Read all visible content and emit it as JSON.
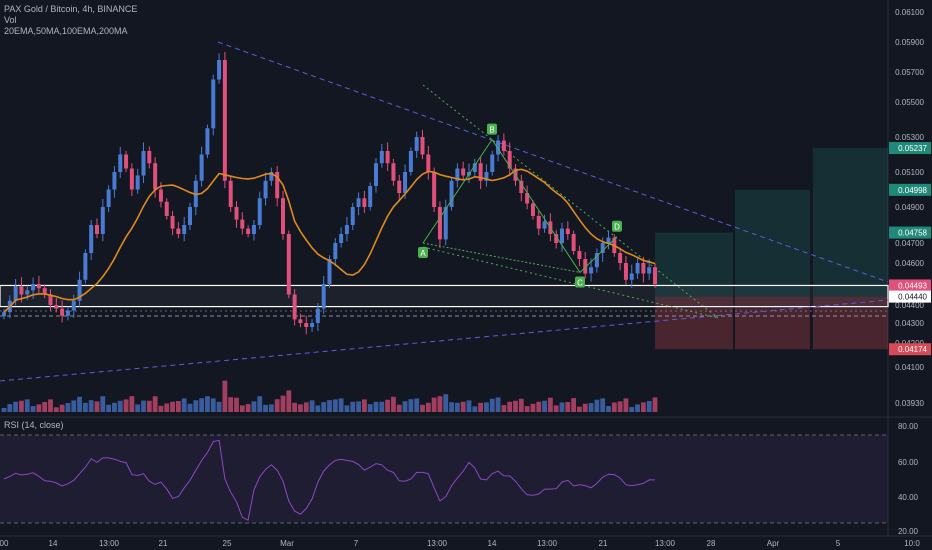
{
  "header": {
    "symbol_line": "PAX Gold / Bitcoin, 4h, BINANCE",
    "volume_label": "Vol",
    "ma_label": "20EMA,50MA,100EMA,200MA"
  },
  "rsi_legend": "RSI (14, close)",
  "colors": {
    "background": "#131722",
    "bull": "#4a7bd2",
    "bear": "#e0507a",
    "ma": "#e08a1e",
    "rsi": "#8e47c7",
    "pattern": "#4caf50",
    "trendline": "#5d5fd9",
    "target": "#1f8a7a",
    "stop": "#d84a56"
  },
  "chart_data": {
    "type": "candlestick",
    "price_axis": {
      "ticks": [
        "0.06100",
        "0.05900",
        "0.05700",
        "0.05500",
        "0.05300",
        "0.05100",
        "0.04900",
        "0.04700",
        "0.04600",
        "0.04400",
        "0.04300",
        "0.04200",
        "0.04100",
        "0.03930"
      ],
      "labels": [
        {
          "text": "0.05237",
          "color": "#1f8a7a"
        },
        {
          "text": "0.04998",
          "color": "#1f8a7a"
        },
        {
          "text": "0.04758",
          "color": "#1f8a7a"
        },
        {
          "text": "0.04493",
          "color": "#e0507a"
        },
        {
          "text": "0.04440",
          "color": "#ffffff"
        },
        {
          "text": "0.04174",
          "color": "#d84a56"
        }
      ]
    },
    "rsi_axis": {
      "ticks": [
        "80.00",
        "60.00",
        "40.00",
        "20.00"
      ]
    },
    "time_axis": [
      "00",
      "14",
      "13:00",
      "21",
      "25",
      "Mar",
      "7",
      "13:00",
      "14",
      "13:00",
      "21",
      "13:00",
      "28",
      "Apr",
      "5",
      "10:0"
    ],
    "pattern_points": [
      {
        "label": "A",
        "price": 0.047
      },
      {
        "label": "B",
        "price": 0.05285
      },
      {
        "label": "C",
        "price": 0.04555
      },
      {
        "label": "D",
        "price": 0.04735
      }
    ],
    "close_series": [
      0.0436,
      0.0442,
      0.0449,
      0.0445,
      0.0447,
      0.045,
      0.0448,
      0.0445,
      0.044,
      0.0438,
      0.0434,
      0.0437,
      0.0442,
      0.0452,
      0.0465,
      0.048,
      0.0475,
      0.049,
      0.05,
      0.051,
      0.052,
      0.0512,
      0.05,
      0.0508,
      0.0522,
      0.0515,
      0.05,
      0.0493,
      0.0485,
      0.0478,
      0.0475,
      0.048,
      0.049,
      0.0505,
      0.052,
      0.0535,
      0.0565,
      0.0578,
      0.0505,
      0.049,
      0.0483,
      0.0478,
      0.0475,
      0.048,
      0.0495,
      0.0505,
      0.051,
      0.0495,
      0.0475,
      0.0445,
      0.0432,
      0.043,
      0.0428,
      0.043,
      0.0438,
      0.045,
      0.0462,
      0.047,
      0.0475,
      0.048,
      0.049,
      0.0495,
      0.049,
      0.0502,
      0.0515,
      0.0522,
      0.0515,
      0.0505,
      0.0498,
      0.051,
      0.0522,
      0.053,
      0.052,
      0.051,
      0.049,
      0.0472,
      0.049,
      0.0505,
      0.0512,
      0.0508,
      0.051,
      0.0515,
      0.0505,
      0.051,
      0.052,
      0.0528,
      0.0522,
      0.0512,
      0.0505,
      0.0498,
      0.0492,
      0.0485,
      0.0478,
      0.0482,
      0.0475,
      0.047,
      0.0478,
      0.0475,
      0.0466,
      0.0462,
      0.0455,
      0.0458,
      0.0465,
      0.047,
      0.0473,
      0.0465,
      0.046,
      0.0452,
      0.0455,
      0.046,
      0.0455,
      0.0458,
      0.045
    ],
    "position": {
      "entry": 0.0444,
      "stop": 0.04174,
      "targets": [
        0.04758,
        0.04998,
        0.05237
      ]
    }
  }
}
